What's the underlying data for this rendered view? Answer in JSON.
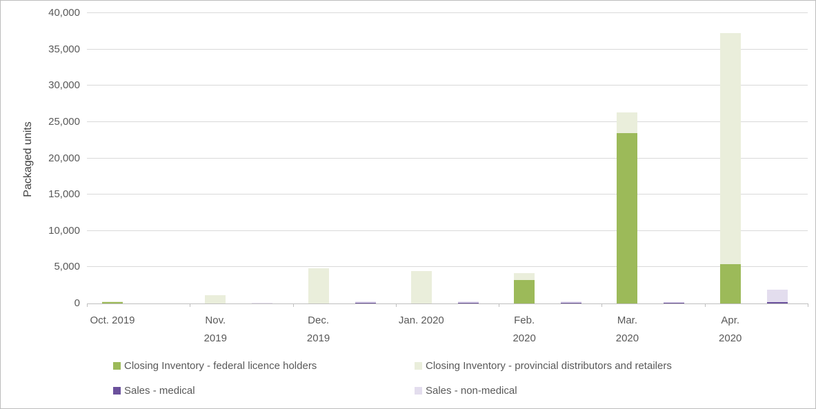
{
  "chart_data": {
    "type": "bar",
    "stacked": true,
    "title": "",
    "xlabel": "",
    "ylabel": "Packaged units",
    "ylim": [
      0,
      40000
    ],
    "ytick_step": 5000,
    "yticks": [
      "0",
      "5,000",
      "10,000",
      "15,000",
      "20,000",
      "25,000",
      "30,000",
      "35,000",
      "40,000"
    ],
    "grid": true,
    "categories": [
      "Oct. 2019",
      "Nov. 2019",
      "Dec. 2019",
      "Jan. 2020",
      "Feb. 2020",
      "Mar. 2020",
      "Apr. 2020"
    ],
    "category_label_lines": [
      [
        "Oct. 2019"
      ],
      [
        "Nov.",
        "2019"
      ],
      [
        "Dec.",
        "2019"
      ],
      [
        "Jan. 2020"
      ],
      [
        "Feb.",
        "2020"
      ],
      [
        "Mar.",
        "2020"
      ],
      [
        "Apr.",
        "2020"
      ]
    ],
    "series": [
      {
        "name": "Closing Inventory - federal licence holders",
        "group": "inventory",
        "color": "#9cba59",
        "values": [
          200,
          0,
          0,
          0,
          3200,
          23500,
          5400
        ]
      },
      {
        "name": "Closing Inventory - provincial distributors and retailers",
        "group": "inventory",
        "color": "#eaeedb",
        "values": [
          100,
          1100,
          4800,
          4500,
          1000,
          2800,
          31800
        ]
      },
      {
        "name": "Sales - medical",
        "group": "sales",
        "color": "#6b519c",
        "values": [
          0,
          0,
          60,
          60,
          60,
          50,
          150
        ]
      },
      {
        "name": "Sales - non-medical",
        "group": "sales",
        "color": "#e3ddee",
        "values": [
          0,
          120,
          230,
          230,
          230,
          180,
          1750
        ]
      }
    ],
    "legend_position": "bottom",
    "legend_rows": [
      [
        "Closing Inventory - federal licence holders",
        "Closing Inventory - provincial distributors and retailers"
      ],
      [
        "Sales - medical",
        "Sales - non-medical"
      ]
    ]
  },
  "colors": {
    "grid": "#d9d9d9",
    "axis": "#bfbfbf",
    "text": "#595959",
    "frame_border": "#bcbcbc"
  }
}
